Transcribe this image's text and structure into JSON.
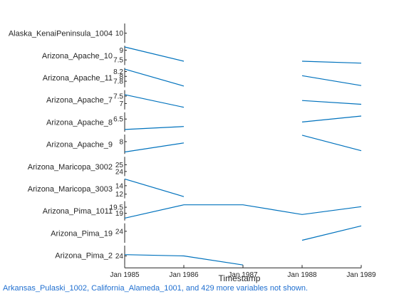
{
  "chart_data": {
    "type": "stacked-line",
    "xlabel": "Timestamp",
    "x_ticks": [
      "Jan 1985",
      "Jan 1986",
      "Jan 1987",
      "Jan 1988",
      "Jan 1989"
    ],
    "x": [
      "1985-01",
      "1986-01",
      "1987-01",
      "1988-01",
      "1989-01"
    ],
    "line_color": "#0072bd",
    "series": [
      {
        "name": "Alaska_KenaiPeninsula_1004",
        "ticks": [
          "10"
        ],
        "ylim": [
          9,
          11
        ],
        "values": [
          null,
          null,
          null,
          null,
          null
        ]
      },
      {
        "name": "Arizona_Apache_10",
        "ticks": [
          "9",
          "7.5"
        ],
        "ylim": [
          6.7,
          9.7
        ],
        "values": [
          9.5,
          7.3,
          null,
          7.3,
          7.0
        ]
      },
      {
        "name": "Arizona_Apache_11",
        "ticks": [
          "8.2",
          "8",
          "7.8"
        ],
        "ylim": [
          7.55,
          8.35
        ],
        "values": [
          8.3,
          7.6,
          null,
          8.03,
          7.62
        ]
      },
      {
        "name": "Arizona_Apache_7",
        "ticks": [
          "7.5",
          "7"
        ],
        "ylim": [
          6.6,
          7.9
        ],
        "values": [
          7.6,
          6.75,
          null,
          7.2,
          6.95
        ]
      },
      {
        "name": "Arizona_Apache_8",
        "ticks": [
          "6.5"
        ],
        "ylim": [
          5.65,
          6.95
        ],
        "values": [
          5.8,
          6.0,
          null,
          6.3,
          6.7
        ]
      },
      {
        "name": "Arizona_Apache_9",
        "ticks": [
          "8"
        ],
        "ylim": [
          7.05,
          8.55
        ],
        "values": [
          7.2,
          7.9,
          null,
          8.5,
          7.3
        ]
      },
      {
        "name": "Arizona_Maricopa_3002",
        "ticks": [
          "25",
          "24"
        ],
        "ylim": [
          23.3,
          26.2
        ],
        "values": [
          null,
          null,
          null,
          null,
          null
        ]
      },
      {
        "name": "Arizona_Maricopa_3003",
        "ticks": [
          "14",
          "12"
        ],
        "ylim": [
          11.0,
          15.6
        ],
        "values": [
          15.6,
          11.4,
          null,
          null,
          null
        ]
      },
      {
        "name": "Arizona_Pima_1011",
        "ticks": [
          "19.5",
          "19"
        ],
        "ylim": [
          18.4,
          20.0
        ],
        "values": [
          18.6,
          19.7,
          19.7,
          18.9,
          19.55
        ]
      },
      {
        "name": "Arizona_Pima_19",
        "ticks": [
          "24"
        ],
        "ylim": [
          20.8,
          26.2
        ],
        "values": [
          null,
          null,
          null,
          21.5,
          25.5
        ]
      },
      {
        "name": "Arizona_Pima_2",
        "ticks": [
          "24"
        ],
        "ylim": [
          23.3,
          24.8
        ],
        "values": [
          24.1,
          24.0,
          23.3,
          null,
          null
        ]
      }
    ],
    "footer": "Arkansas_Pulaski_1002, California_Alameda_1001, and 429 more variables not shown."
  }
}
